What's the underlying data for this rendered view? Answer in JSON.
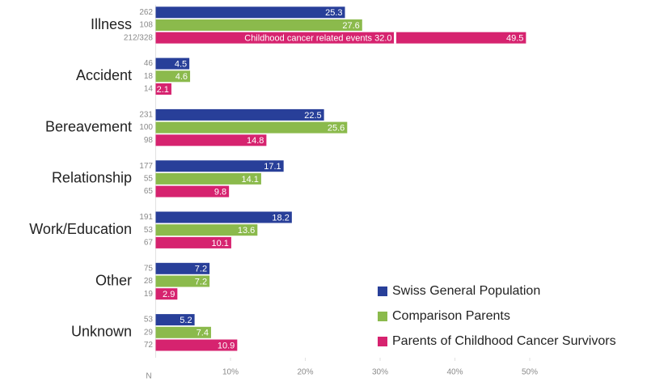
{
  "chart_data": {
    "type": "hbar",
    "categories": [
      "Illness",
      "Accident",
      "Bereavement",
      "Relationship",
      "Work/Education",
      "Other",
      "Unknown"
    ],
    "series": [
      {
        "name": "Swiss General Population",
        "color": "#283f99",
        "values": [
          25.3,
          4.5,
          22.5,
          17.1,
          18.2,
          7.2,
          5.2
        ],
        "n": [
          262,
          46,
          231,
          177,
          191,
          75,
          53
        ]
      },
      {
        "name": "Comparison Parents",
        "color": "#8bba4c",
        "values": [
          27.6,
          4.6,
          25.6,
          14.1,
          13.6,
          7.2,
          7.4
        ],
        "n": [
          108,
          18,
          100,
          55,
          53,
          28,
          29
        ]
      },
      {
        "name": "Parents of Childhood Cancer Survivors",
        "color": "#d6236f",
        "values": [
          49.5,
          2.1,
          14.8,
          9.8,
          10.1,
          2.9,
          10.9
        ],
        "n": [
          "212/328",
          14,
          98,
          65,
          67,
          19,
          72
        ]
      }
    ],
    "annotation": {
      "text": "Childhood cancer related events",
      "value": 32.0,
      "value_label": "32.0",
      "category": 0,
      "series": 2
    },
    "n_label": "N",
    "xlim": [
      0,
      50
    ],
    "xticks": [
      {
        "value": 10,
        "label": "10%"
      },
      {
        "value": 20,
        "label": "20%"
      },
      {
        "value": 30,
        "label": "30%"
      },
      {
        "value": 40,
        "label": "40%"
      },
      {
        "value": 50,
        "label": "50%"
      }
    ],
    "legend": "lower-right"
  }
}
